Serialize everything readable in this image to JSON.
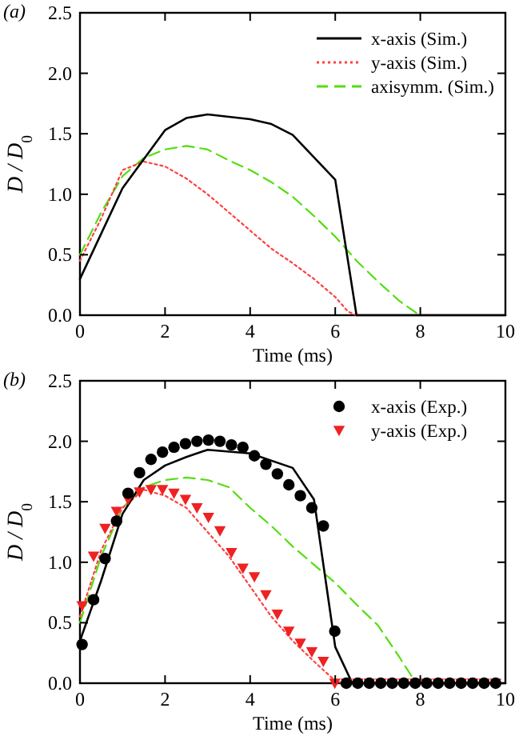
{
  "chart_data": [
    {
      "type": "line",
      "annotations": [
        "(a)"
      ],
      "xlabel": "Time (ms)",
      "ylabel": "D / D$_{0}$",
      "xlim": [
        0,
        10
      ],
      "ylim": [
        0,
        2.5
      ],
      "xticks": [
        0,
        2,
        4,
        6,
        8,
        10
      ],
      "yticks": [
        {
          "value": 0,
          "label": "0.0"
        },
        {
          "value": 0.5,
          "label": "0.5"
        },
        {
          "value": 1,
          "label": "1.0"
        },
        {
          "value": 1.5,
          "label": "1.5"
        },
        {
          "value": 2,
          "label": "2.0"
        },
        {
          "value": 2.5,
          "label": "2.5"
        }
      ],
      "legend": "top right",
      "grid": false,
      "series": [
        {
          "name": "x-axis (Sim.)",
          "color": "#000000",
          "line_style": "solid",
          "x": [
            0,
            1,
            2,
            2.5,
            3,
            4,
            4.5,
            5,
            6,
            6.5,
            10
          ],
          "values": [
            0.3,
            1.05,
            1.53,
            1.63,
            1.66,
            1.62,
            1.58,
            1.49,
            1.12,
            0,
            0
          ]
        },
        {
          "name": "y-axis (Sim.)",
          "color": "#ff4040",
          "line_style": "dotted",
          "x": [
            0,
            0.5,
            1,
            1.5,
            2,
            2.5,
            3,
            3.5,
            4,
            4.5,
            5,
            5.5,
            6,
            6.3,
            6.5,
            10
          ],
          "values": [
            0.45,
            0.8,
            1.2,
            1.27,
            1.23,
            1.13,
            1,
            0.85,
            0.7,
            0.55,
            0.43,
            0.3,
            0.15,
            0.03,
            0,
            0
          ]
        },
        {
          "name": "axisymm. (Sim.)",
          "color": "#55dd11",
          "line_style": "dashed",
          "x": [
            0,
            0.5,
            1,
            1.5,
            2,
            2.5,
            3,
            3.5,
            4,
            4.5,
            5,
            5.5,
            6,
            6.5,
            7,
            7.5,
            7.9,
            8,
            10
          ],
          "values": [
            0.5,
            0.85,
            1.15,
            1.3,
            1.37,
            1.4,
            1.37,
            1.28,
            1.2,
            1.1,
            0.98,
            0.82,
            0.65,
            0.45,
            0.28,
            0.12,
            0.02,
            0,
            0
          ]
        }
      ]
    },
    {
      "type": "line",
      "annotations": [
        "(b)"
      ],
      "xlabel": "Time (ms)",
      "ylabel": "D / D$_{0}$",
      "xlim": [
        0,
        10
      ],
      "ylim": [
        0,
        2.5
      ],
      "xticks": [
        0,
        2,
        4,
        6,
        8,
        10
      ],
      "yticks": [
        {
          "value": 0,
          "label": "0.0"
        },
        {
          "value": 0.5,
          "label": "0.5"
        },
        {
          "value": 1,
          "label": "1.0"
        },
        {
          "value": 1.5,
          "label": "1.5"
        },
        {
          "value": 2,
          "label": "2.0"
        },
        {
          "value": 2.5,
          "label": "2.5"
        }
      ],
      "legend": "top right",
      "grid": false,
      "series": [
        {
          "color": "#000000",
          "line_style": "solid",
          "x": [
            0,
            0.5,
            1,
            1.5,
            2,
            2.5,
            3,
            4,
            5,
            5.5,
            6,
            6.4,
            10
          ],
          "values": [
            0.35,
            0.85,
            1.4,
            1.68,
            1.8,
            1.87,
            1.93,
            1.9,
            1.78,
            1.52,
            0.3,
            0,
            0
          ]
        },
        {
          "color": "#ff4040",
          "line_style": "dotted",
          "x": [
            0,
            0.5,
            1,
            1.5,
            2,
            2.5,
            3,
            3.5,
            4,
            4.5,
            5,
            5.5,
            6,
            6.2,
            10
          ],
          "values": [
            0.55,
            1.1,
            1.45,
            1.6,
            1.55,
            1.45,
            1.25,
            1.05,
            0.8,
            0.55,
            0.35,
            0.18,
            0.02,
            0,
            0
          ]
        },
        {
          "color": "#55dd11",
          "line_style": "dashed",
          "x": [
            0,
            0.5,
            1,
            1.5,
            2,
            2.5,
            3,
            3.5,
            4,
            4.5,
            5,
            5.5,
            6,
            6.5,
            7,
            7.5,
            7.9,
            10
          ],
          "values": [
            0.5,
            1.05,
            1.45,
            1.62,
            1.68,
            1.7,
            1.68,
            1.62,
            1.45,
            1.3,
            1.13,
            0.98,
            0.83,
            0.65,
            0.48,
            0.22,
            0,
            0
          ]
        },
        {
          "type": "scatter",
          "name": "x-axis (Exp.)",
          "color": "#000000",
          "marker": "circle",
          "x": [
            0.05,
            0.32,
            0.59,
            0.86,
            1.13,
            1.4,
            1.67,
            1.94,
            2.21,
            2.48,
            2.75,
            3.02,
            3.29,
            3.56,
            3.83,
            4.1,
            4.37,
            4.64,
            4.91,
            5.18,
            5.45,
            5.72,
            5.99,
            6.26,
            6.53,
            6.8,
            7.07,
            7.34,
            7.61,
            7.88,
            8.15,
            8.42,
            8.69,
            8.96,
            9.23,
            9.5,
            9.77
          ],
          "values": [
            0.32,
            0.69,
            1.03,
            1.34,
            1.57,
            1.74,
            1.85,
            1.91,
            1.95,
            1.98,
            2.0,
            2.01,
            2.0,
            1.97,
            1.95,
            1.88,
            1.81,
            1.73,
            1.64,
            1.55,
            1.45,
            1.3,
            0.43,
            0,
            0,
            0,
            0,
            0,
            0,
            0,
            0,
            0,
            0,
            0,
            0,
            0,
            0
          ]
        },
        {
          "type": "scatter",
          "name": "y-axis (Exp.)",
          "color": "#ee2222",
          "marker": "triangle",
          "x": [
            0.05,
            0.32,
            0.59,
            0.86,
            1.13,
            1.4,
            1.67,
            1.94,
            2.21,
            2.48,
            2.75,
            3.02,
            3.29,
            3.56,
            3.83,
            4.1,
            4.37,
            4.64,
            4.91,
            5.18,
            5.45,
            5.72,
            5.99,
            6.26,
            6.53,
            6.8,
            7.07,
            7.34,
            7.61,
            7.88,
            8.15,
            8.42,
            8.69,
            8.96,
            9.23,
            9.5,
            9.77
          ],
          "values": [
            0.64,
            1.05,
            1.28,
            1.42,
            1.52,
            1.58,
            1.6,
            1.6,
            1.57,
            1.52,
            1.45,
            1.37,
            1.26,
            1.08,
            0.95,
            0.88,
            0.73,
            0.57,
            0.43,
            0.33,
            0.26,
            0.18,
            0,
            0,
            0,
            0,
            0,
            0,
            0,
            0,
            0,
            0,
            0,
            0,
            0,
            0,
            0
          ]
        }
      ]
    }
  ]
}
